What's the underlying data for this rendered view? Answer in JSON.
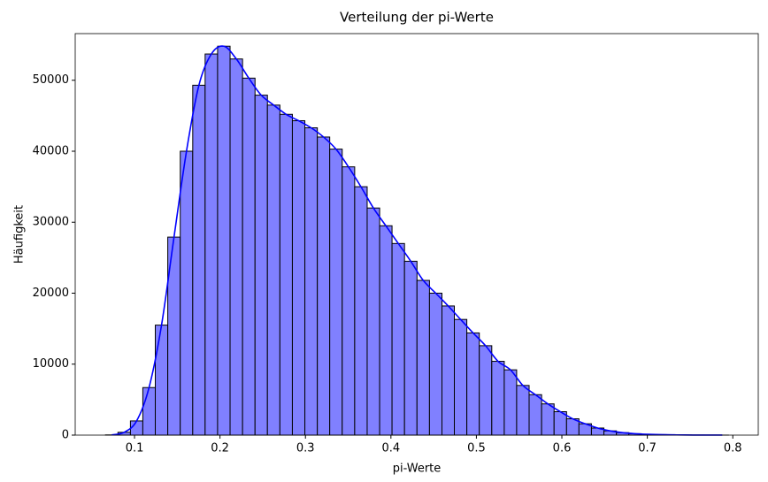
{
  "chart_data": {
    "type": "histogram",
    "title": "Verteilung der pi-Werte",
    "x_label": "pi-Werte",
    "y_label": "Häufigkeit",
    "bins": [
      0.066,
      0.0806,
      0.0952,
      0.1097,
      0.1243,
      0.1389,
      0.1535,
      0.1681,
      0.1826,
      0.1972,
      0.2118,
      0.2264,
      0.241,
      0.2555,
      0.2701,
      0.2847,
      0.2993,
      0.3139,
      0.3284,
      0.343,
      0.3576,
      0.3722,
      0.3868,
      0.4013,
      0.4159,
      0.4305,
      0.4451,
      0.4597,
      0.4742,
      0.4888,
      0.5034,
      0.518,
      0.5326,
      0.5471,
      0.5617,
      0.5763,
      0.5909,
      0.6055,
      0.62,
      0.6346,
      0.6492,
      0.6638,
      0.6784,
      0.6929,
      0.7075,
      0.7221,
      0.7367,
      0.7513,
      0.7658,
      0.7804,
      0.795
    ],
    "values": [
      30,
      400,
      2000,
      6700,
      15500,
      27900,
      40000,
      49300,
      53700,
      54800,
      53000,
      50300,
      47900,
      46500,
      45200,
      44300,
      43300,
      42000,
      40300,
      37800,
      35000,
      32000,
      29500,
      27000,
      24500,
      21800,
      20000,
      18200,
      16300,
      14400,
      12600,
      10400,
      9200,
      7000,
      5700,
      4400,
      3300,
      2300,
      1600,
      1000,
      600,
      350,
      200,
      120,
      70,
      40,
      20,
      10,
      5,
      3
    ],
    "color": "#8080ff",
    "edge_color": "#000000",
    "kde_color": "#0000ff",
    "xlim": [
      0.0306,
      0.8298
    ],
    "ylim": [
      0,
      56573
    ],
    "xticks": [
      0.1,
      0.2,
      0.3,
      0.4,
      0.5,
      0.6,
      0.7,
      0.8
    ],
    "yticks": [
      0,
      10000,
      20000,
      30000,
      40000,
      50000
    ]
  }
}
